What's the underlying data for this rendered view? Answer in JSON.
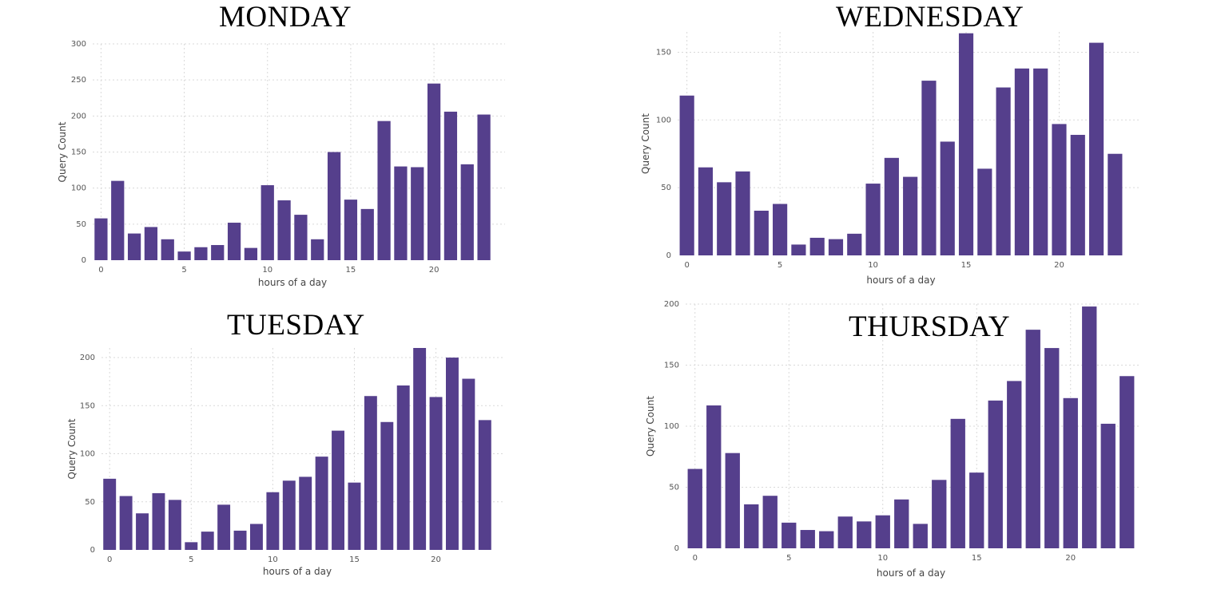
{
  "colors": {
    "bar": "#553f8c"
  },
  "chart_data": [
    {
      "type": "bar",
      "title": "MONDAY",
      "xlabel": "hours of a day",
      "ylabel": "Query Count",
      "ylim": [
        0,
        300
      ],
      "yticks": [
        0,
        50,
        100,
        150,
        200,
        250,
        300
      ],
      "xticks": [
        0,
        5,
        10,
        15,
        20
      ],
      "x": [
        0,
        1,
        2,
        3,
        4,
        5,
        6,
        7,
        8,
        9,
        10,
        11,
        12,
        13,
        14,
        15,
        16,
        17,
        18,
        19,
        20,
        21,
        22,
        23
      ],
      "values": [
        58,
        110,
        37,
        46,
        29,
        12,
        18,
        21,
        52,
        17,
        104,
        83,
        63,
        29,
        150,
        84,
        71,
        193,
        130,
        129,
        245,
        206,
        133,
        202
      ],
      "grid": true
    },
    {
      "type": "bar",
      "title": "WEDNESDAY",
      "xlabel": "hours of a day",
      "ylabel": "Query Count",
      "ylim": [
        0,
        165
      ],
      "yticks": [
        0,
        50,
        100,
        150
      ],
      "xticks": [
        0,
        5,
        10,
        15,
        20
      ],
      "x": [
        0,
        1,
        2,
        3,
        4,
        5,
        6,
        7,
        8,
        9,
        10,
        11,
        12,
        13,
        14,
        15,
        16,
        17,
        18,
        19,
        20,
        21,
        22,
        23
      ],
      "values": [
        118,
        65,
        54,
        62,
        33,
        38,
        8,
        13,
        12,
        16,
        53,
        72,
        58,
        129,
        84,
        164,
        64,
        124,
        138,
        138,
        97,
        89,
        157,
        75
      ],
      "grid": true
    },
    {
      "type": "bar",
      "title": "TUESDAY",
      "xlabel": "hours of a day",
      "ylabel": "Query Count",
      "ylim": [
        0,
        210
      ],
      "yticks": [
        0,
        50,
        100,
        150,
        200
      ],
      "xticks": [
        0,
        5,
        10,
        15,
        20
      ],
      "x": [
        0,
        1,
        2,
        3,
        4,
        5,
        6,
        7,
        8,
        9,
        10,
        11,
        12,
        13,
        14,
        15,
        16,
        17,
        18,
        19,
        20,
        21,
        22,
        23
      ],
      "values": [
        74,
        56,
        38,
        59,
        52,
        8,
        19,
        47,
        20,
        27,
        60,
        72,
        76,
        97,
        124,
        70,
        160,
        133,
        171,
        210,
        159,
        200,
        178,
        135
      ],
      "grid": true
    },
    {
      "type": "bar",
      "title": "THURSDAY",
      "xlabel": "hours of a day",
      "ylabel": "Query Count",
      "ylim": [
        0,
        200
      ],
      "yticks": [
        0,
        50,
        100,
        150,
        200
      ],
      "xticks": [
        0,
        5,
        10,
        15,
        20
      ],
      "x": [
        0,
        1,
        2,
        3,
        4,
        5,
        6,
        7,
        8,
        9,
        10,
        11,
        12,
        13,
        14,
        15,
        16,
        17,
        18,
        19,
        20,
        21,
        22,
        23
      ],
      "values": [
        65,
        117,
        78,
        36,
        43,
        21,
        15,
        14,
        26,
        22,
        27,
        40,
        20,
        56,
        106,
        62,
        121,
        137,
        179,
        164,
        123,
        198,
        102,
        141
      ],
      "grid": true
    }
  ]
}
